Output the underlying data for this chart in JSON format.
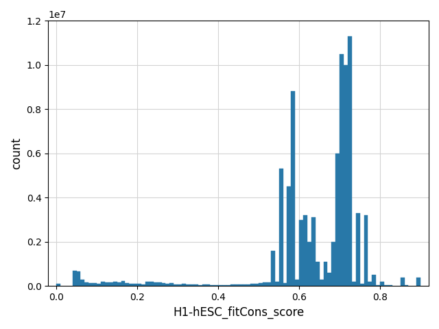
{
  "xlabel": "H1-hESC_fitCons_score",
  "ylabel": "count",
  "bar_color": "#2878a8",
  "xlim": [
    -0.02,
    0.92
  ],
  "ylim": [
    0,
    12000000.0
  ],
  "bin_width": 0.01,
  "bars": [
    [
      0.0,
      100000
    ],
    [
      0.04,
      700000
    ],
    [
      0.05,
      650000
    ],
    [
      0.06,
      300000
    ],
    [
      0.07,
      180000
    ],
    [
      0.08,
      150000
    ],
    [
      0.09,
      130000
    ],
    [
      0.1,
      100000
    ],
    [
      0.11,
      200000
    ],
    [
      0.12,
      180000
    ],
    [
      0.13,
      180000
    ],
    [
      0.14,
      200000
    ],
    [
      0.15,
      180000
    ],
    [
      0.16,
      230000
    ],
    [
      0.17,
      130000
    ],
    [
      0.18,
      100000
    ],
    [
      0.19,
      120000
    ],
    [
      0.2,
      100000
    ],
    [
      0.21,
      80000
    ],
    [
      0.22,
      200000
    ],
    [
      0.23,
      200000
    ],
    [
      0.24,
      160000
    ],
    [
      0.25,
      160000
    ],
    [
      0.26,
      130000
    ],
    [
      0.27,
      100000
    ],
    [
      0.28,
      130000
    ],
    [
      0.29,
      80000
    ],
    [
      0.3,
      80000
    ],
    [
      0.31,
      100000
    ],
    [
      0.32,
      80000
    ],
    [
      0.33,
      80000
    ],
    [
      0.34,
      80000
    ],
    [
      0.35,
      60000
    ],
    [
      0.36,
      70000
    ],
    [
      0.37,
      70000
    ],
    [
      0.38,
      50000
    ],
    [
      0.39,
      50000
    ],
    [
      0.4,
      50000
    ],
    [
      0.41,
      60000
    ],
    [
      0.42,
      60000
    ],
    [
      0.43,
      70000
    ],
    [
      0.44,
      70000
    ],
    [
      0.45,
      80000
    ],
    [
      0.46,
      80000
    ],
    [
      0.47,
      80000
    ],
    [
      0.48,
      100000
    ],
    [
      0.49,
      120000
    ],
    [
      0.5,
      150000
    ],
    [
      0.51,
      160000
    ],
    [
      0.52,
      180000
    ],
    [
      0.53,
      1600000
    ],
    [
      0.54,
      200000
    ],
    [
      0.55,
      5300000
    ],
    [
      0.56,
      150000
    ],
    [
      0.57,
      4500000
    ],
    [
      0.58,
      8800000
    ],
    [
      0.59,
      300000
    ],
    [
      0.6,
      3000000
    ],
    [
      0.61,
      3200000
    ],
    [
      0.62,
      2000000
    ],
    [
      0.63,
      3100000
    ],
    [
      0.64,
      1100000
    ],
    [
      0.65,
      300000
    ],
    [
      0.66,
      1100000
    ],
    [
      0.67,
      600000
    ],
    [
      0.68,
      2000000
    ],
    [
      0.69,
      6000000
    ],
    [
      0.7,
      10500000
    ],
    [
      0.71,
      10000000
    ],
    [
      0.72,
      11300000
    ],
    [
      0.73,
      200000
    ],
    [
      0.74,
      3300000
    ],
    [
      0.75,
      100000
    ],
    [
      0.76,
      3200000
    ],
    [
      0.77,
      200000
    ],
    [
      0.78,
      500000
    ],
    [
      0.79,
      50000
    ],
    [
      0.8,
      200000
    ],
    [
      0.81,
      50000
    ],
    [
      0.82,
      50000
    ],
    [
      0.85,
      400000
    ],
    [
      0.86,
      50000
    ],
    [
      0.89,
      400000
    ]
  ],
  "yticks": [
    0.0,
    0.2,
    0.4,
    0.6,
    0.8,
    1.0,
    1.2
  ],
  "xticks": [
    0.0,
    0.2,
    0.4,
    0.6,
    0.8
  ]
}
